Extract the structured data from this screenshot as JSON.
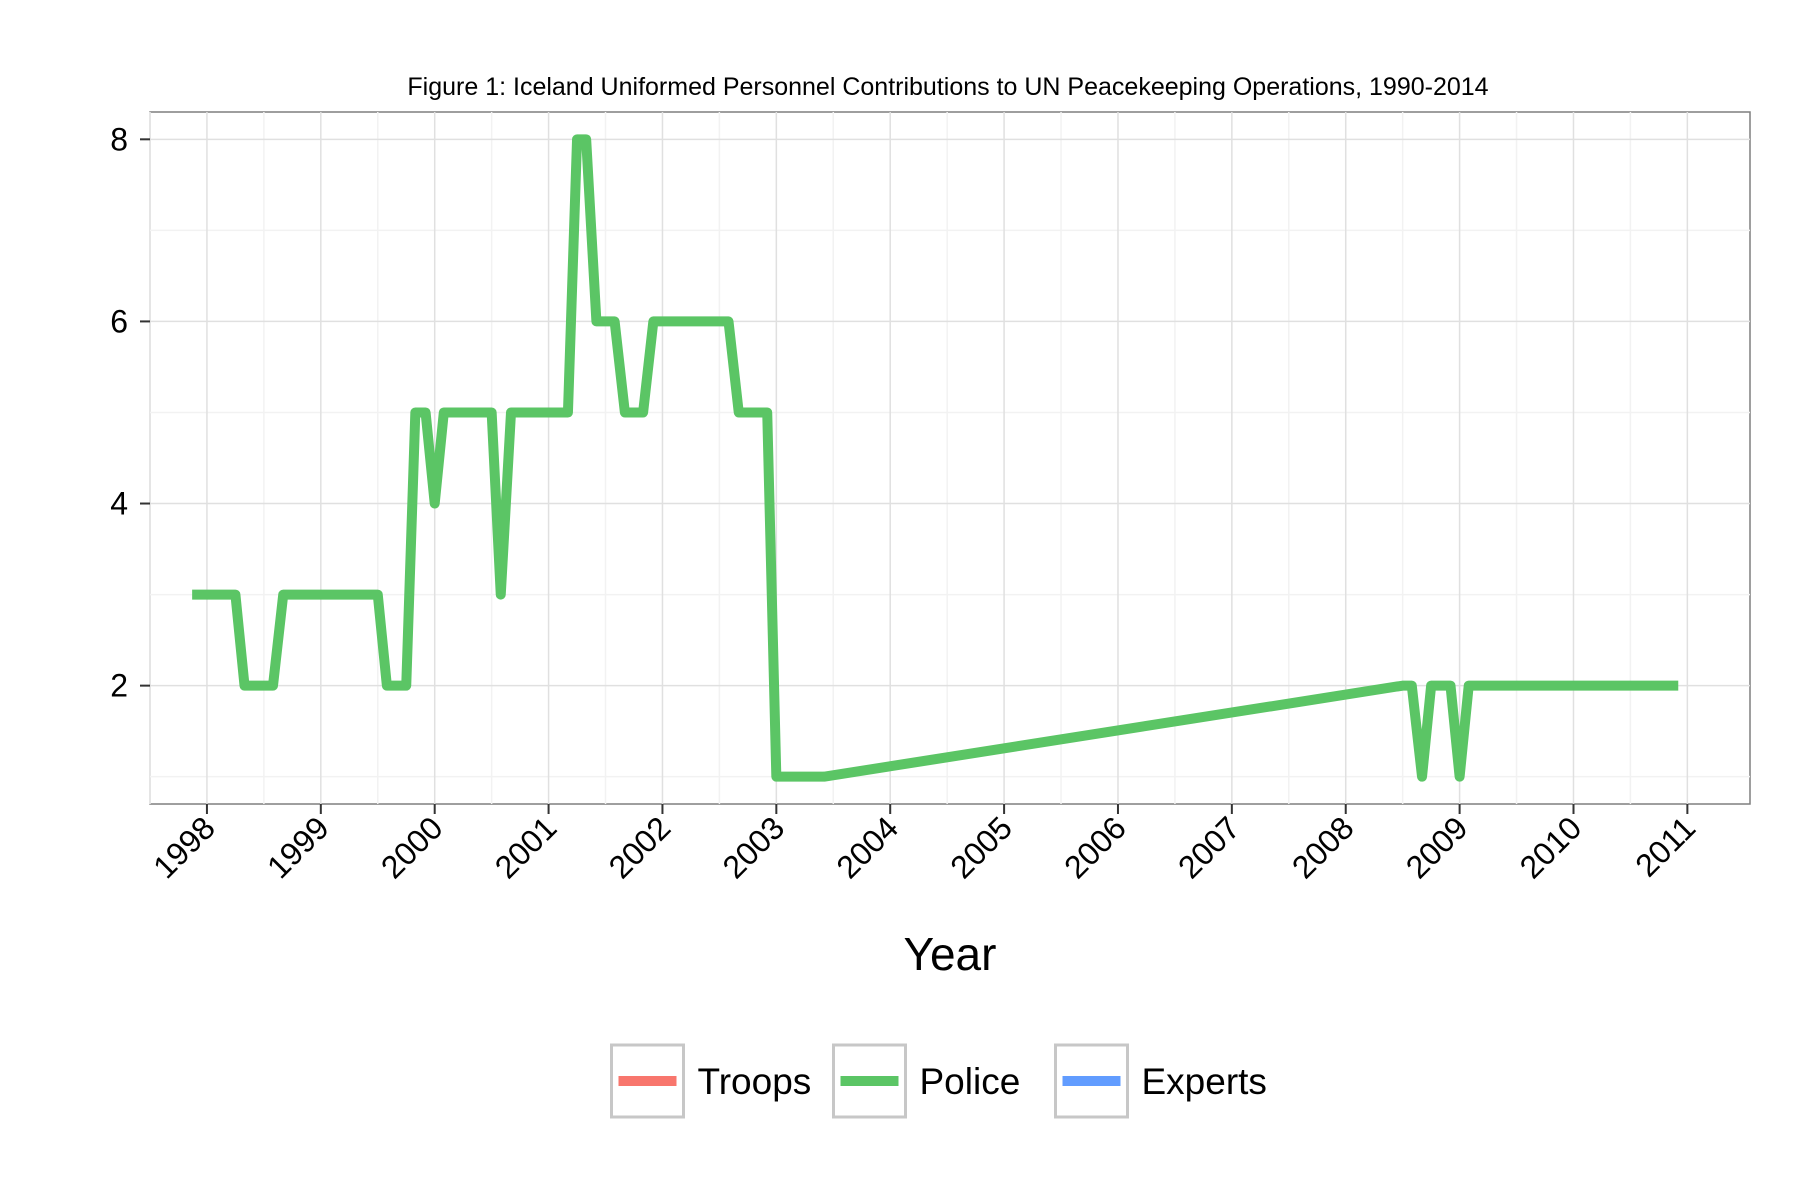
{
  "chart_data": {
    "type": "line",
    "title": "Figure 1: Iceland Uniformed Personnel Contributions to UN Peacekeeping Operations, 1990-2014",
    "xlabel": "Year",
    "ylabel": "",
    "x_ticks": [
      "1998",
      "1999",
      "2000",
      "2001",
      "2002",
      "2003",
      "2004",
      "2005",
      "2006",
      "2007",
      "2008",
      "2009",
      "2010",
      "2011"
    ],
    "y_ticks": [
      2,
      4,
      6,
      8
    ],
    "xlim": [
      1997.5,
      2011.55
    ],
    "ylim": [
      0.7,
      8.3
    ],
    "grid": true,
    "legend_position": "bottom",
    "series": [
      {
        "name": "Troops",
        "color": "#F8766D",
        "points": []
      },
      {
        "name": "Police",
        "color": "#5BC565",
        "points": [
          [
            1997.87,
            3
          ],
          [
            1998.25,
            3
          ],
          [
            1998.33,
            2
          ],
          [
            1998.58,
            2
          ],
          [
            1998.67,
            3
          ],
          [
            1999.5,
            3
          ],
          [
            1999.58,
            2
          ],
          [
            1999.75,
            2
          ],
          [
            1999.83,
            5
          ],
          [
            1999.92,
            5
          ],
          [
            2000.0,
            4
          ],
          [
            2000.08,
            5
          ],
          [
            2000.5,
            5
          ],
          [
            2000.58,
            3
          ],
          [
            2000.67,
            5
          ],
          [
            2001.17,
            5
          ],
          [
            2001.25,
            8
          ],
          [
            2001.33,
            8
          ],
          [
            2001.42,
            6
          ],
          [
            2001.58,
            6
          ],
          [
            2001.67,
            5
          ],
          [
            2001.83,
            5
          ],
          [
            2001.92,
            6
          ],
          [
            2002.58,
            6
          ],
          [
            2002.67,
            5
          ],
          [
            2002.92,
            5
          ],
          [
            2003.0,
            1
          ],
          [
            2003.42,
            1
          ],
          [
            2008.5,
            2
          ],
          [
            2008.58,
            2
          ],
          [
            2008.67,
            1
          ],
          [
            2008.75,
            2
          ],
          [
            2008.92,
            2
          ],
          [
            2009.0,
            1
          ],
          [
            2009.08,
            2
          ],
          [
            2010.92,
            2
          ]
        ]
      },
      {
        "name": "Experts",
        "color": "#619CFF",
        "points": []
      }
    ]
  }
}
